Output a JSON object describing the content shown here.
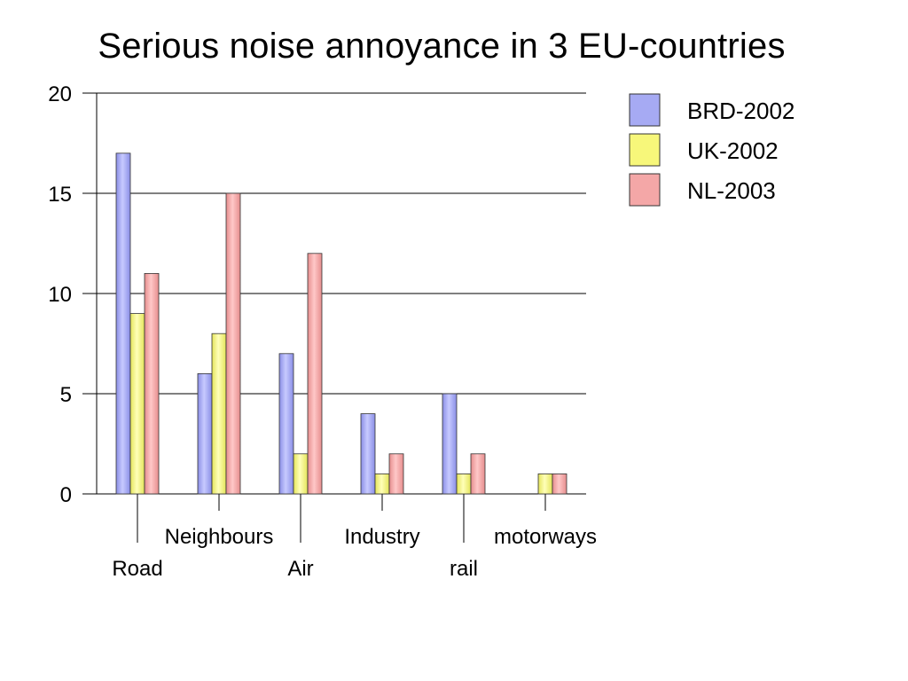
{
  "chart_data": {
    "type": "bar",
    "title": "Serious noise annoyance in 3 EU-countries",
    "xlabel": "",
    "ylabel": "",
    "ylim": [
      0,
      20
    ],
    "yticks": [
      0,
      5,
      10,
      15,
      20
    ],
    "grid": true,
    "legend_position": "right",
    "categories": [
      "Road",
      "Neighbours",
      "Air",
      "Industry",
      "rail",
      "motorways"
    ],
    "series": [
      {
        "name": "BRD-2002",
        "color": "#a6aaf3",
        "values": [
          17,
          6,
          7,
          4,
          5,
          0
        ]
      },
      {
        "name": "UK-2002",
        "color": "#f7f77a",
        "values": [
          9,
          8,
          2,
          1,
          1,
          1
        ]
      },
      {
        "name": "NL-2003",
        "color": "#f4a7a7",
        "values": [
          11,
          15,
          12,
          2,
          2,
          1
        ]
      }
    ]
  }
}
